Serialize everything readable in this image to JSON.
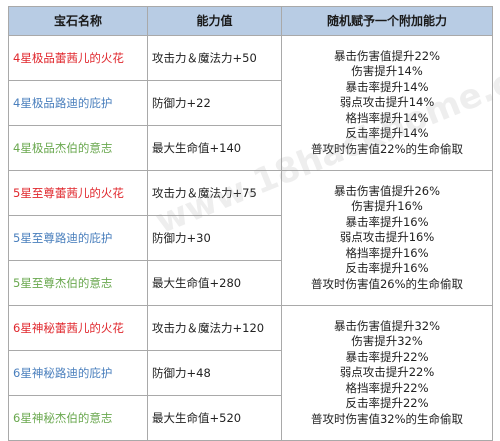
{
  "table": {
    "headers": {
      "name": "宝石名称",
      "ability": "能力值",
      "bonus": "随机赋予一个附加能力"
    },
    "groups": [
      {
        "rows": [
          {
            "name": "4星极品蕾茜儿的火花",
            "ability": "攻击力＆魔法力+50"
          },
          {
            "name": "4星极品路迪的庇护",
            "ability": "防御力+22"
          },
          {
            "name": "4星极品杰伯的意志",
            "ability": "最大生命值+140"
          }
        ],
        "bonuses": [
          "暴击伤害值提升22%",
          "伤害提升14%",
          "暴击率提升14%",
          "弱点攻击提升14%",
          "格挡率提升14%",
          "反击率提升14%",
          "普攻时伤害值22%的生命偷取"
        ]
      },
      {
        "rows": [
          {
            "name": "5星至尊蕾茜儿的火花",
            "ability": "攻击力＆魔法力+75"
          },
          {
            "name": "5星至尊路迪的庇护",
            "ability": "防御力+30"
          },
          {
            "name": "5星至尊杰伯的意志",
            "ability": "最大生命值+280"
          }
        ],
        "bonuses": [
          "暴击伤害值提升26%",
          "伤害提升16%",
          "暴击率提升16%",
          "弱点攻击提升16%",
          "格挡率提升16%",
          "反击率提升16%",
          "普攻时伤害值26%的生命偷取"
        ]
      },
      {
        "rows": [
          {
            "name": "6星神秘蕾茜儿的火花",
            "ability": "攻击力＆魔法力+120"
          },
          {
            "name": "6星神秘路迪的庇护",
            "ability": "防御力+48"
          },
          {
            "name": "6星神秘杰伯的意志",
            "ability": "最大生命值+520"
          }
        ],
        "bonuses": [
          "暴击伤害值提升32%",
          "伤害提升32%",
          "暴击率提升22%",
          "弱点攻击提升22%",
          "格挡率提升22%",
          "反击率提升22%",
          "普攻时伤害值32%的生命偷取"
        ]
      }
    ]
  },
  "colors": {
    "header_bg": "#b8cce4",
    "border": "#a9a9a9",
    "red": "#e0282e",
    "blue": "#4a7fbd",
    "green": "#6aa84f"
  },
  "watermark": "www.18hackhome.com"
}
